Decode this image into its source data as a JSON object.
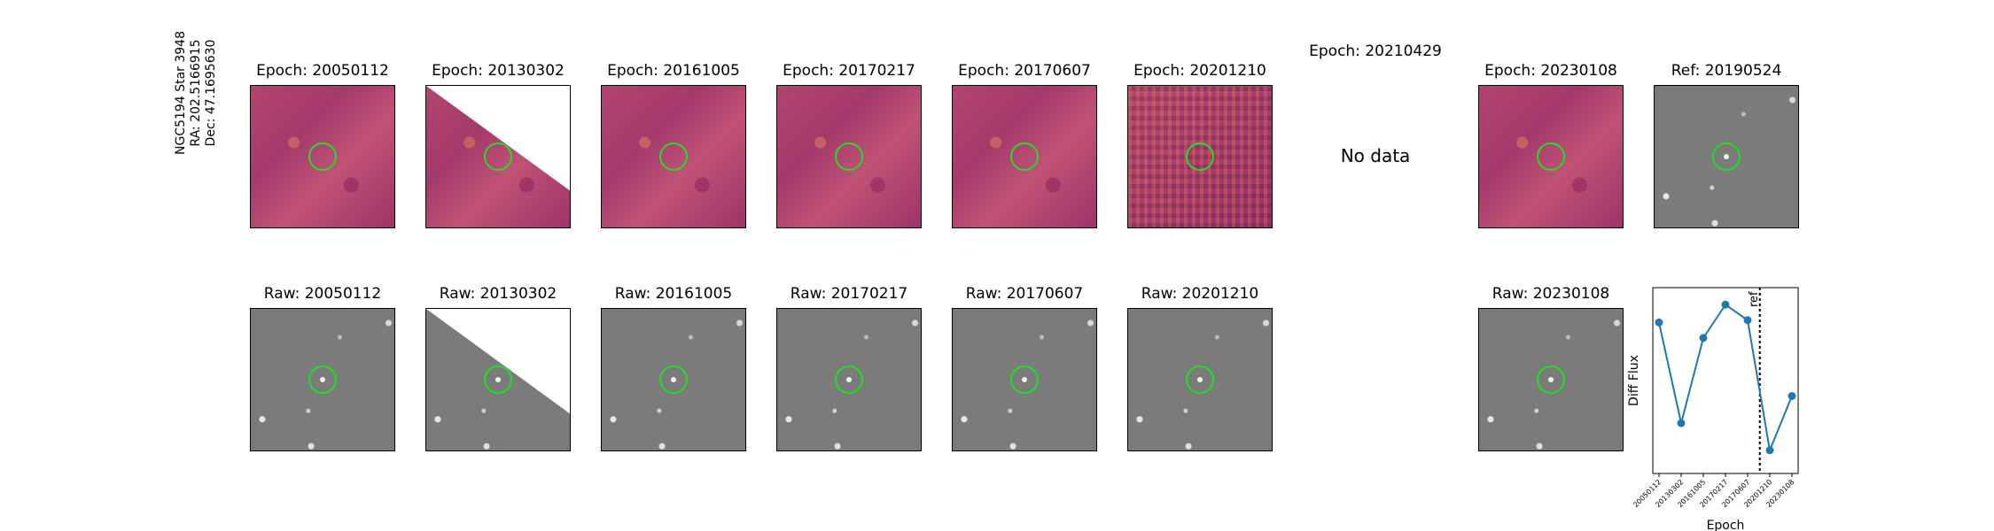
{
  "star_label": {
    "line1": "NGC5194 Star 3948",
    "line2": "RA: 202.5166915",
    "line3": "Dec: 47.1695630"
  },
  "diff_panels": [
    {
      "title": "Epoch: 20050112",
      "style": "diff",
      "mask": false
    },
    {
      "title": "Epoch: 20130302",
      "style": "diff",
      "mask": true
    },
    {
      "title": "Epoch: 20161005",
      "style": "diff",
      "mask": false
    },
    {
      "title": "Epoch: 20170217",
      "style": "diff",
      "mask": false
    },
    {
      "title": "Epoch: 20170607",
      "style": "diff",
      "mask": false
    },
    {
      "title": "Epoch: 20201210",
      "style": "noisy",
      "mask": false
    },
    {
      "title": "Epoch: 20210429",
      "style": "none",
      "mask": false,
      "no_data": "No data"
    },
    {
      "title": "Epoch: 20230108",
      "style": "diff",
      "mask": false
    },
    {
      "title": "Ref: 20190524",
      "style": "raw",
      "mask": false
    }
  ],
  "raw_panels": [
    {
      "title": "Raw: 20050112",
      "mask": false
    },
    {
      "title": "Raw: 20130302",
      "mask": true
    },
    {
      "title": "Raw: 20161005",
      "mask": false
    },
    {
      "title": "Raw: 20170217",
      "mask": false
    },
    {
      "title": "Raw: 20170607",
      "mask": false
    },
    {
      "title": "Raw: 20201210",
      "mask": false
    },
    {
      "title": "Raw: 20230108",
      "mask": false
    }
  ],
  "marker_color": "#22dd22",
  "chart_data": {
    "type": "line",
    "x": [
      "20050112",
      "20130302",
      "20161005",
      "20170217",
      "20170607",
      "20201210",
      "20230108"
    ],
    "values": [
      0.55,
      -0.75,
      0.35,
      0.78,
      0.58,
      -1.1,
      -0.4
    ],
    "xlabel": "Epoch",
    "ylabel": "Diff Flux",
    "ylim": [
      -1.4,
      1.0
    ],
    "ref_line": {
      "after_index": 4.55,
      "label": "ref"
    },
    "color": "#1f77b4"
  }
}
